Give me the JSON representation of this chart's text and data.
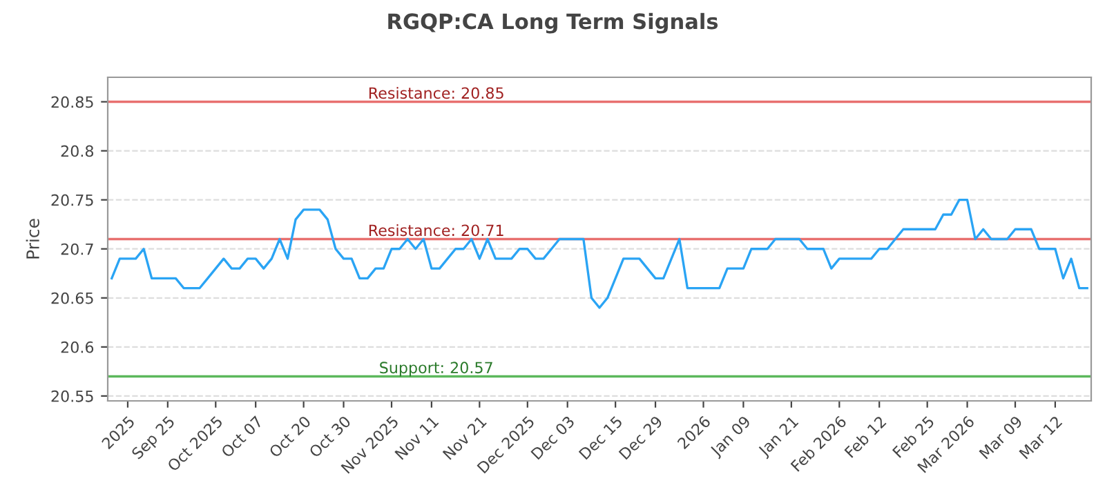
{
  "chart_data": {
    "type": "line",
    "title": "RGQP:CA Long Term Signals",
    "ylabel": "Price",
    "categories": [
      null,
      null,
      "2025",
      null,
      null,
      null,
      null,
      "Sep 25",
      null,
      null,
      null,
      null,
      null,
      "Oct 2025",
      null,
      null,
      null,
      null,
      "Oct 07",
      null,
      null,
      null,
      null,
      null,
      "Oct 20",
      null,
      null,
      null,
      null,
      "Oct 30",
      null,
      null,
      null,
      null,
      null,
      "Nov 2025",
      null,
      null,
      null,
      null,
      "Nov 11",
      null,
      null,
      null,
      null,
      null,
      "Nov 21",
      null,
      null,
      null,
      null,
      null,
      "Dec 2025",
      null,
      null,
      null,
      null,
      "Dec 03",
      null,
      null,
      null,
      null,
      null,
      "Dec 15",
      null,
      null,
      null,
      null,
      "Dec 29",
      null,
      null,
      null,
      null,
      null,
      "2026",
      null,
      null,
      null,
      null,
      "Jan 09",
      null,
      null,
      null,
      null,
      null,
      "Jan 21",
      null,
      null,
      null,
      null,
      null,
      "Feb 2026",
      null,
      null,
      null,
      null,
      "Feb 12",
      null,
      null,
      null,
      null,
      null,
      "Feb 25",
      null,
      null,
      null,
      null,
      "Mar 2026",
      null,
      null,
      null,
      null,
      null,
      "Mar 09",
      null,
      null,
      null,
      null,
      "Mar 12",
      null,
      null,
      null,
      null
    ],
    "series": [
      {
        "color": "#2aa4f4",
        "values": [
          20.67,
          20.69,
          20.69,
          20.69,
          20.7,
          20.67,
          20.67,
          20.67,
          20.67,
          20.66,
          20.66,
          20.66,
          20.67,
          20.68,
          20.69,
          20.68,
          20.68,
          20.69,
          20.69,
          20.68,
          20.69,
          20.71,
          20.69,
          20.73,
          20.74,
          20.74,
          20.74,
          20.73,
          20.7,
          20.69,
          20.69,
          20.67,
          20.67,
          20.68,
          20.68,
          20.7,
          20.7,
          20.71,
          20.7,
          20.71,
          20.68,
          20.68,
          20.69,
          20.7,
          20.7,
          20.71,
          20.69,
          20.71,
          20.69,
          20.69,
          20.69,
          20.7,
          20.7,
          20.69,
          20.69,
          20.7,
          20.71,
          20.71,
          20.71,
          20.71,
          20.65,
          20.64,
          20.65,
          20.67,
          20.69,
          20.69,
          20.69,
          20.68,
          20.67,
          20.67,
          20.69,
          20.71,
          20.66,
          20.66,
          20.66,
          20.66,
          20.66,
          20.68,
          20.68,
          20.68,
          20.7,
          20.7,
          20.7,
          20.71,
          20.71,
          20.71,
          20.71,
          20.7,
          20.7,
          20.7,
          20.68,
          20.69,
          20.69,
          20.69,
          20.69,
          20.69,
          20.7,
          20.7,
          20.71,
          20.72,
          20.72,
          20.72,
          20.72,
          20.72,
          20.735,
          20.735,
          20.75,
          20.75,
          20.71,
          20.72,
          20.71,
          20.71,
          20.71,
          20.72,
          20.72,
          20.72,
          20.7,
          20.7,
          20.7,
          20.67,
          20.69,
          20.66,
          20.66
        ]
      }
    ],
    "ylim": [
      20.545,
      20.875
    ],
    "yticks": [
      20.55,
      20.6,
      20.65,
      20.7,
      20.75,
      20.8,
      20.85
    ],
    "grid": "y",
    "legend": false,
    "marker": "none",
    "line_style": "solid",
    "ref_lines": [
      {
        "axis": "y",
        "value": 20.85,
        "label": "Resistance: 20.85",
        "color": "#e8706f"
      },
      {
        "axis": "y",
        "value": 20.71,
        "label": "Resistance: 20.71",
        "color": "#e8706f"
      },
      {
        "axis": "y",
        "value": 20.57,
        "label": "Support: 20.57",
        "color": "#5cb85c"
      }
    ]
  }
}
